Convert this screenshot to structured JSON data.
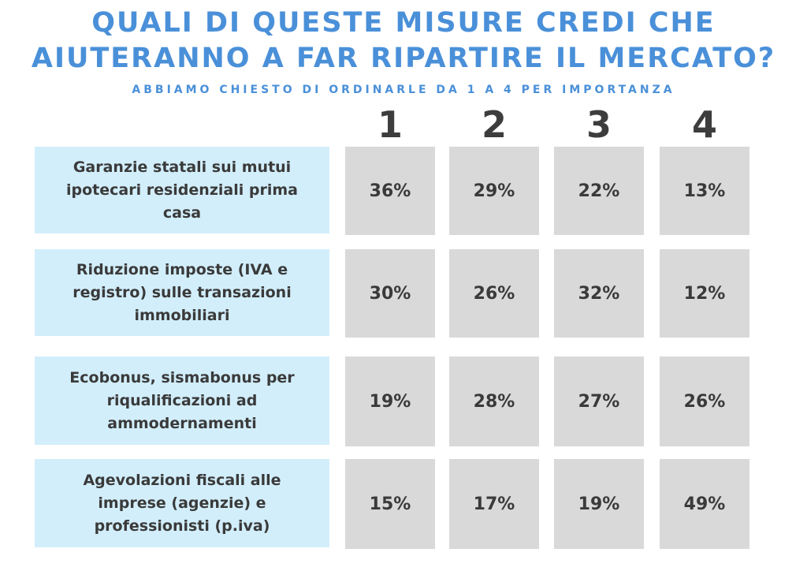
{
  "title_line1": "QUALI DI QUESTE MISURE CREDI CHE",
  "title_line2": "AIUTERANNO A FAR RIPARTIRE IL MERCATO?",
  "subtitle": "ABBIAMO CHIESTO DI ORDINARLE DA 1 A 4 PER IMPORTANZA",
  "colors": {
    "title": "#4a90d9",
    "label_bg": "#d2eefb",
    "cell_bg": "#d9d9d9",
    "text": "#3a3a3a"
  },
  "chart_data": {
    "type": "table",
    "title": "QUALI DI QUESTE MISURE CREDI CHE AIUTERANNO A FAR RIPARTIRE IL MERCATO?",
    "subtitle": "ABBIAMO CHIESTO DI ORDINARLE DA 1 A 4 PER IMPORTANZA",
    "columns": [
      "1",
      "2",
      "3",
      "4"
    ],
    "rows": [
      {
        "label": "Garanzie statali sui mutui ipotecari residenziali prima casa",
        "values": [
          "36%",
          "29%",
          "22%",
          "13%"
        ]
      },
      {
        "label": "Riduzione imposte (IVA e registro) sulle transazioni immobiliari",
        "values": [
          "30%",
          "26%",
          "32%",
          "12%"
        ]
      },
      {
        "label": "Ecobonus, sismabonus per riqualificazioni ad ammodernamenti",
        "values": [
          "19%",
          "28%",
          "27%",
          "26%"
        ]
      },
      {
        "label": "Agevolazioni fiscali alle imprese (agenzie) e professionisti (p.iva)",
        "values": [
          "15%",
          "17%",
          "19%",
          "49%"
        ]
      }
    ]
  }
}
